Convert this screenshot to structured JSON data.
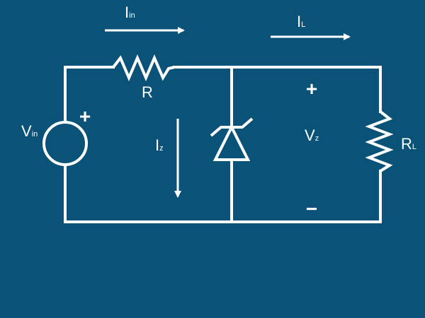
{
  "colors": {
    "background": "#0b5279",
    "stroke": "#ffffff"
  },
  "labels": {
    "iin": {
      "main": "I",
      "sub": "in"
    },
    "il": {
      "main": "I",
      "sub": "L"
    },
    "r": {
      "main": "R"
    },
    "vin": {
      "main": "V",
      "sub": "in"
    },
    "iz": {
      "main": "I",
      "sub": "z"
    },
    "vz": {
      "main": "V",
      "sub": "z"
    },
    "rl": {
      "main": "R",
      "sub": "L"
    },
    "plus_source": "+",
    "plus_load": "+",
    "minus_load": "−"
  },
  "icons": {
    "source": "voltage-source-icon",
    "resistor": "resistor-icon",
    "zener": "zener-diode-icon",
    "arrow": "arrow-icon"
  }
}
